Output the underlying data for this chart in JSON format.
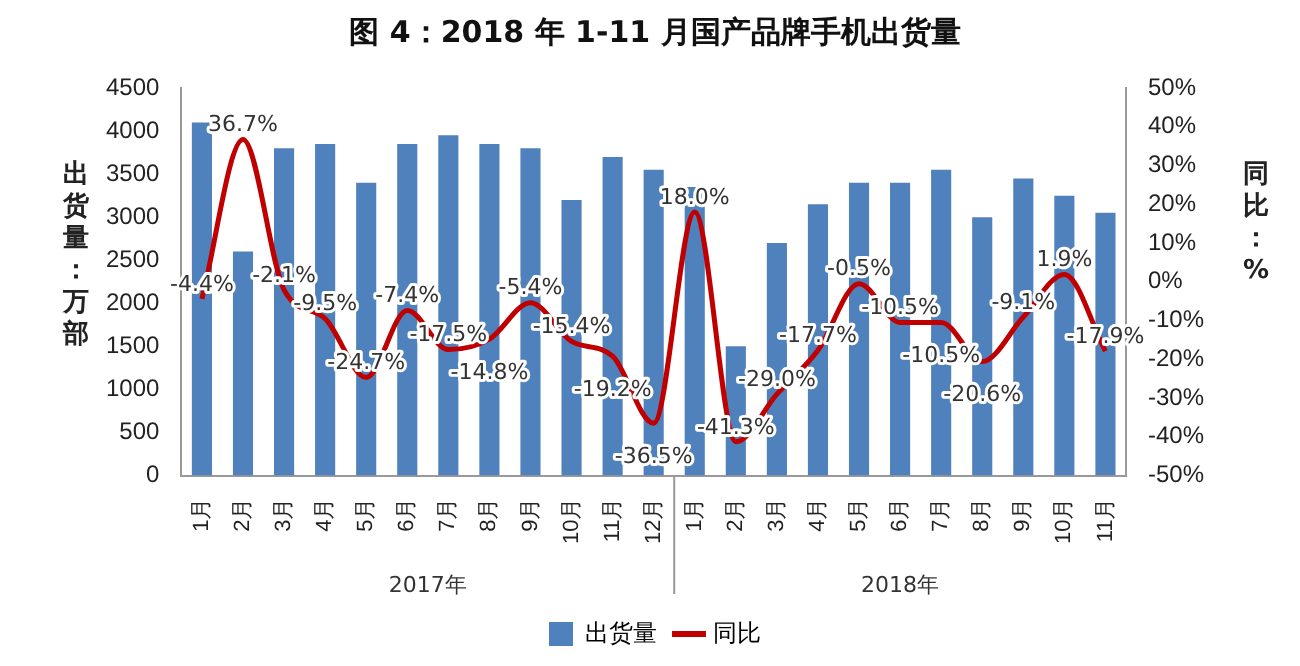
{
  "chart_data": {
    "type": "bar",
    "title": "图 4：2018 年 1-11 月国产品牌手机出货量",
    "ylabel": "出货量：万部",
    "y2label": "同比：%",
    "categories": [
      "1月",
      "2月",
      "3月",
      "4月",
      "5月",
      "6月",
      "7月",
      "8月",
      "9月",
      "10月",
      "11月",
      "12月",
      "1月",
      "2月",
      "3月",
      "4月",
      "5月",
      "6月",
      "7月",
      "8月",
      "9月",
      "10月",
      "11月"
    ],
    "annotations": [
      "2017年",
      "2018年"
    ],
    "series": [
      {
        "name": "出货量",
        "color": "#4f81bd",
        "values": [
          4100,
          2600,
          3800,
          3850,
          3400,
          3850,
          3950,
          3850,
          3800,
          3200,
          3700,
          3550,
          3350,
          1500,
          2700,
          3150,
          3400,
          3400,
          3550,
          3000,
          3450,
          3250,
          3050
        ]
      },
      {
        "name": "同比",
        "type": "line",
        "axis": "y2",
        "color": "#c00000",
        "values": [
          -4.4,
          36.7,
          -2.1,
          -9.5,
          -24.7,
          -7.4,
          -17.5,
          -14.8,
          -5.4,
          -15.4,
          -19.2,
          -36.5,
          18.0,
          -41.3,
          -29.0,
          -17.7,
          -0.5,
          -10.5,
          -10.5,
          -20.6,
          -9.1,
          1.9,
          -17.9
        ],
        "value_labels": [
          "-4.4%",
          "36.7%",
          "-2.1%",
          "-9.5%",
          "-24.7%",
          "-7.4%",
          "-17.5%",
          "-14.8%",
          "-5.4%",
          "-15.4%",
          "-19.2%",
          "-36.5%",
          "18.0%",
          "-41.3%",
          "-29.0%",
          "-17.7%",
          "-0.5%",
          "-10.5%",
          "-10.5%",
          "-20.6%",
          "-9.1%",
          "1.9%",
          "-17.9%"
        ]
      }
    ],
    "ylim": [
      0,
      4500
    ],
    "yticks": [
      0,
      500,
      1000,
      1500,
      2000,
      2500,
      3000,
      3500,
      4000,
      4500
    ],
    "y2lim": [
      -50,
      50
    ],
    "y2ticks": [
      {
        "value": -50,
        "label": "-50%"
      },
      {
        "value": -40,
        "label": "-40%"
      },
      {
        "value": -30,
        "label": "-30%"
      },
      {
        "value": -20,
        "label": "-20%"
      },
      {
        "value": -10,
        "label": "-10%"
      },
      {
        "value": 0,
        "label": "0%"
      },
      {
        "value": 10,
        "label": "10%"
      },
      {
        "value": 20,
        "label": "20%"
      },
      {
        "value": 30,
        "label": "30%"
      },
      {
        "value": 40,
        "label": "40%"
      },
      {
        "value": 50,
        "label": "50%"
      }
    ],
    "grid": false,
    "legend": "bottom",
    "marker": "none",
    "line_style": "solid"
  }
}
